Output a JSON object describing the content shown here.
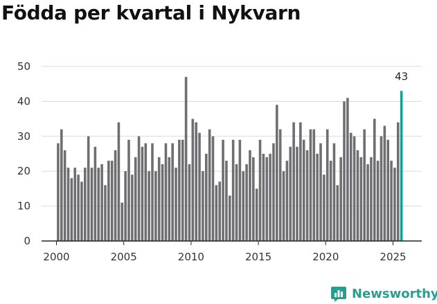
{
  "chart_data": {
    "type": "bar",
    "title": "Födda per kvartal i Nykvarn",
    "xlabel": "",
    "ylabel": "",
    "ylim": [
      0,
      50
    ],
    "yticks": [
      0,
      10,
      20,
      30,
      40,
      50
    ],
    "xticks": [
      "2000",
      "2005",
      "2010",
      "2015",
      "2020",
      "2025"
    ],
    "start": "2000 Q1",
    "values": [
      28,
      32,
      26,
      21,
      18,
      21,
      19,
      17,
      21,
      30,
      21,
      27,
      21,
      22,
      16,
      23,
      23,
      26,
      34,
      11,
      20,
      29,
      19,
      24,
      30,
      27,
      28,
      20,
      28,
      20,
      24,
      22,
      28,
      24,
      28,
      21,
      29,
      29,
      47,
      22,
      35,
      34,
      31,
      20,
      25,
      32,
      30,
      16,
      17,
      29,
      23,
      13,
      29,
      22,
      29,
      20,
      22,
      26,
      24,
      15,
      29,
      25,
      24,
      25,
      28,
      39,
      32,
      20,
      23,
      27,
      34,
      27,
      34,
      29,
      26,
      32,
      32,
      25,
      28,
      19,
      32,
      23,
      28,
      16,
      24,
      40,
      41,
      31,
      30,
      26,
      24,
      32,
      22,
      24,
      35,
      23,
      30,
      33,
      29,
      23,
      21,
      34,
      43
    ],
    "highlight_label": "43",
    "bar_color": "#6f6e73",
    "highlight_color": "#1a9e8f",
    "grid": true
  },
  "brand": {
    "name": "Newsworthy",
    "color": "#2a9d8f"
  }
}
